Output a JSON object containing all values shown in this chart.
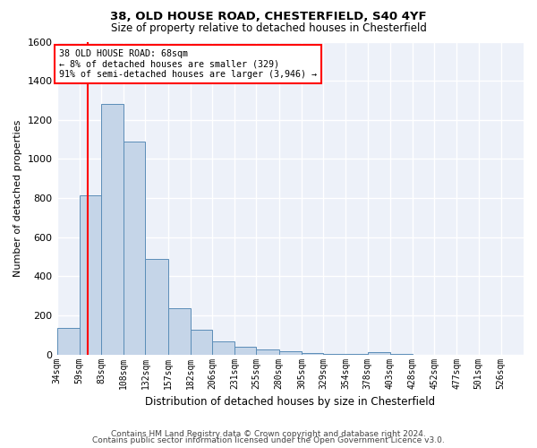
{
  "title1": "38, OLD HOUSE ROAD, CHESTERFIELD, S40 4YF",
  "title2": "Size of property relative to detached houses in Chesterfield",
  "xlabel": "Distribution of detached houses by size in Chesterfield",
  "ylabel": "Number of detached properties",
  "bar_color": "#c5d5e8",
  "bar_edge_color": "#5b8db8",
  "background_color": "#edf1f9",
  "grid_color": "#ffffff",
  "bins": [
    "34sqm",
    "59sqm",
    "83sqm",
    "108sqm",
    "132sqm",
    "157sqm",
    "182sqm",
    "206sqm",
    "231sqm",
    "255sqm",
    "280sqm",
    "305sqm",
    "329sqm",
    "354sqm",
    "378sqm",
    "403sqm",
    "428sqm",
    "452sqm",
    "477sqm",
    "501sqm",
    "526sqm"
  ],
  "values": [
    135,
    815,
    1280,
    1090,
    490,
    235,
    125,
    68,
    38,
    25,
    15,
    8,
    4,
    2,
    12,
    2,
    0,
    0,
    0,
    0,
    0
  ],
  "bin_edges": [
    34,
    59,
    83,
    108,
    132,
    157,
    182,
    206,
    231,
    255,
    280,
    305,
    329,
    354,
    378,
    403,
    428,
    452,
    477,
    501,
    526,
    551
  ],
  "vline_x": 68,
  "ylim": [
    0,
    1600
  ],
  "yticks": [
    0,
    200,
    400,
    600,
    800,
    1000,
    1200,
    1400,
    1600
  ],
  "annotation_text": "38 OLD HOUSE ROAD: 68sqm\n← 8% of detached houses are smaller (329)\n91% of semi-detached houses are larger (3,946) →",
  "footer1": "Contains HM Land Registry data © Crown copyright and database right 2024.",
  "footer2": "Contains public sector information licensed under the Open Government Licence v3.0."
}
